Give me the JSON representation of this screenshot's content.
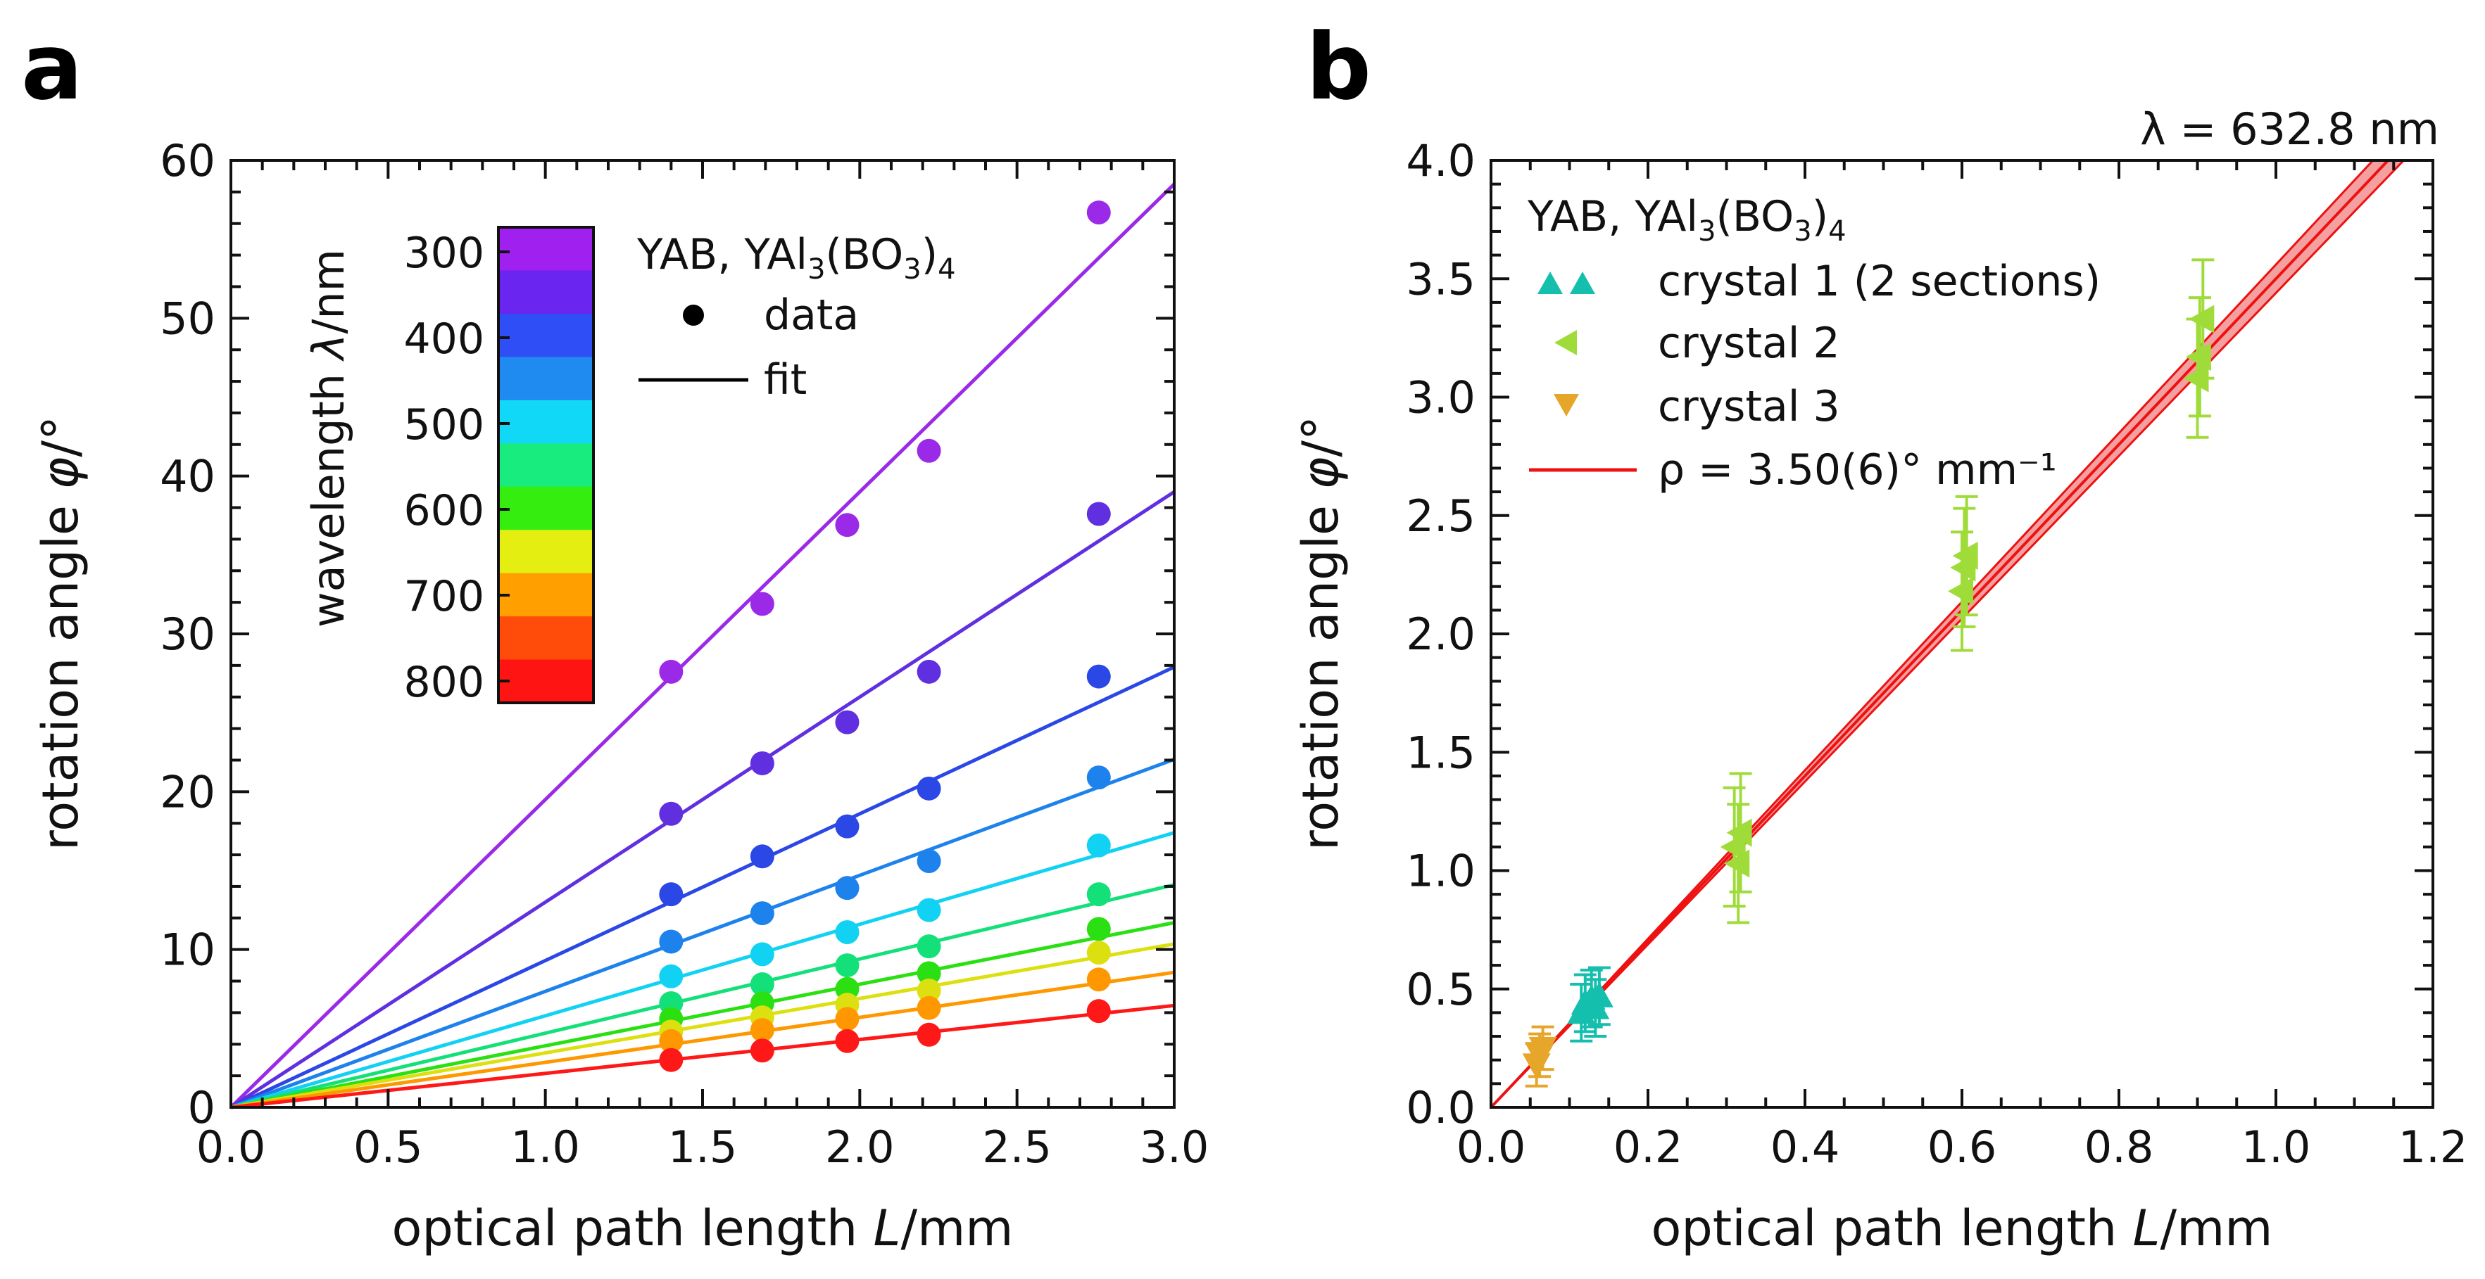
{
  "chart_data": [
    {
      "panel": "a",
      "type": "scatter",
      "xlabel": "optical path length L/mm",
      "ylabel": "rotation angle φ/°",
      "xlim": [
        0,
        3.0
      ],
      "ylim": [
        0,
        60
      ],
      "xticks": [
        "0.0",
        "0.5",
        "1.0",
        "1.5",
        "2.0",
        "2.5",
        "3.0"
      ],
      "yticks": [
        "0",
        "10",
        "20",
        "30",
        "40",
        "50",
        "60"
      ],
      "legend": {
        "title_main": "YAB, YAl",
        "title_sub1": "3",
        "title_mid": "(BO",
        "title_sub2": "3",
        "title_end": ")",
        "title_sub3": "4",
        "data_label": "data",
        "fit_label": "fit"
      },
      "colorbar": {
        "label": "wavelength λ/nm",
        "ticks": [
          "300",
          "400",
          "500",
          "600",
          "700",
          "800"
        ],
        "colors": [
          "#a020f0",
          "#6a25f0",
          "#2f4ef5",
          "#1f8af0",
          "#12d8f8",
          "#19ec7e",
          "#35ee10",
          "#e4ee10",
          "#ff9f00",
          "#ff4c0a",
          "#ff1414"
        ]
      },
      "series": [
        {
          "name": "purple",
          "color": "#9a2ae8",
          "slope": 19.5,
          "x": [
            1.4,
            1.69,
            1.96,
            2.22,
            2.76
          ],
          "y": [
            27.6,
            31.9,
            36.9,
            41.6,
            56.7
          ]
        },
        {
          "name": "violet",
          "color": "#6030e0",
          "slope": 13.0,
          "x": [
            1.4,
            1.69,
            1.96,
            2.22,
            2.76
          ],
          "y": [
            18.6,
            21.8,
            24.4,
            27.6,
            37.6
          ]
        },
        {
          "name": "blue",
          "color": "#2b48e6",
          "slope": 9.3,
          "x": [
            1.4,
            1.69,
            1.96,
            2.22,
            2.76
          ],
          "y": [
            13.5,
            15.9,
            17.8,
            20.2,
            27.3
          ]
        },
        {
          "name": "azure",
          "color": "#1e82ec",
          "slope": 7.35,
          "x": [
            1.4,
            1.69,
            1.96,
            2.22,
            2.76
          ],
          "y": [
            10.5,
            12.3,
            13.9,
            15.6,
            20.9
          ]
        },
        {
          "name": "cyan",
          "color": "#11d2f2",
          "slope": 5.8,
          "x": [
            1.4,
            1.69,
            1.96,
            2.22,
            2.76
          ],
          "y": [
            8.3,
            9.7,
            11.1,
            12.5,
            16.6
          ]
        },
        {
          "name": "spring",
          "color": "#14e07a",
          "slope": 4.7,
          "x": [
            1.4,
            1.69,
            1.96,
            2.22,
            2.76
          ],
          "y": [
            6.6,
            7.8,
            9.0,
            10.2,
            13.5
          ]
        },
        {
          "name": "green",
          "color": "#2be012",
          "slope": 3.9,
          "x": [
            1.4,
            1.69,
            1.96,
            2.22,
            2.76
          ],
          "y": [
            5.6,
            6.6,
            7.5,
            8.5,
            11.3
          ]
        },
        {
          "name": "yellow",
          "color": "#dde010",
          "slope": 3.45,
          "x": [
            1.4,
            1.69,
            1.96,
            2.22,
            2.76
          ],
          "y": [
            4.8,
            5.7,
            6.5,
            7.4,
            9.8
          ]
        },
        {
          "name": "orange",
          "color": "#ff9800",
          "slope": 2.85,
          "x": [
            1.4,
            1.69,
            1.96,
            2.22,
            2.76
          ],
          "y": [
            4.2,
            4.9,
            5.6,
            6.3,
            8.1
          ]
        },
        {
          "name": "red",
          "color": "#ff1818",
          "slope": 2.15,
          "x": [
            1.4,
            1.69,
            1.96,
            2.22,
            2.76
          ],
          "y": [
            3.0,
            3.6,
            4.2,
            4.6,
            6.1
          ]
        }
      ]
    },
    {
      "panel": "b",
      "type": "scatter",
      "title": "λ = 632.8 nm",
      "xlabel": "optical path length L/mm",
      "ylabel": "rotation angle φ/°",
      "xlim": [
        0,
        1.2
      ],
      "ylim": [
        0,
        4.0
      ],
      "xticks": [
        "0.0",
        "0.2",
        "0.4",
        "0.6",
        "0.8",
        "1.0",
        "1.2"
      ],
      "yticks": [
        "0.0",
        "0.5",
        "1.0",
        "1.5",
        "2.0",
        "2.5",
        "3.0",
        "3.5",
        "4.0"
      ],
      "legend": {
        "title_main": "YAB, YAl",
        "title_sub1": "3",
        "title_mid": "(BO",
        "title_sub2": "3",
        "title_end": ")",
        "title_sub3": "4",
        "fit_label": "ρ = 3.50(6)° mm⁻¹"
      },
      "fit": {
        "slope": 3.5,
        "uncertainty": 0.06,
        "color": "#ee1111",
        "band_color": "#f4a0a0"
      },
      "series": [
        {
          "name": "crystal 1 (2 sections)",
          "marker": "triangle-up",
          "color": "#15bfae",
          "x": [
            0.115,
            0.12,
            0.128,
            0.133,
            0.138
          ],
          "y": [
            0.4,
            0.44,
            0.46,
            0.42,
            0.47
          ],
          "err": 0.12
        },
        {
          "name": "crystal 2",
          "marker": "triangle-left",
          "color": "#9fdc3a",
          "x": [
            0.31,
            0.315,
            0.318,
            0.6,
            0.603,
            0.606,
            0.9,
            0.903,
            0.907
          ],
          "y": [
            1.1,
            1.03,
            1.16,
            2.18,
            2.28,
            2.33,
            3.08,
            3.17,
            3.33
          ],
          "err": 0.25
        },
        {
          "name": "crystal 3",
          "marker": "triangle-down",
          "color": "#e5a62a",
          "x": [
            0.058,
            0.062,
            0.066
          ],
          "y": [
            0.18,
            0.22,
            0.25
          ],
          "err": 0.09
        }
      ]
    }
  ],
  "panel_labels": {
    "a": "a",
    "b": "b"
  }
}
